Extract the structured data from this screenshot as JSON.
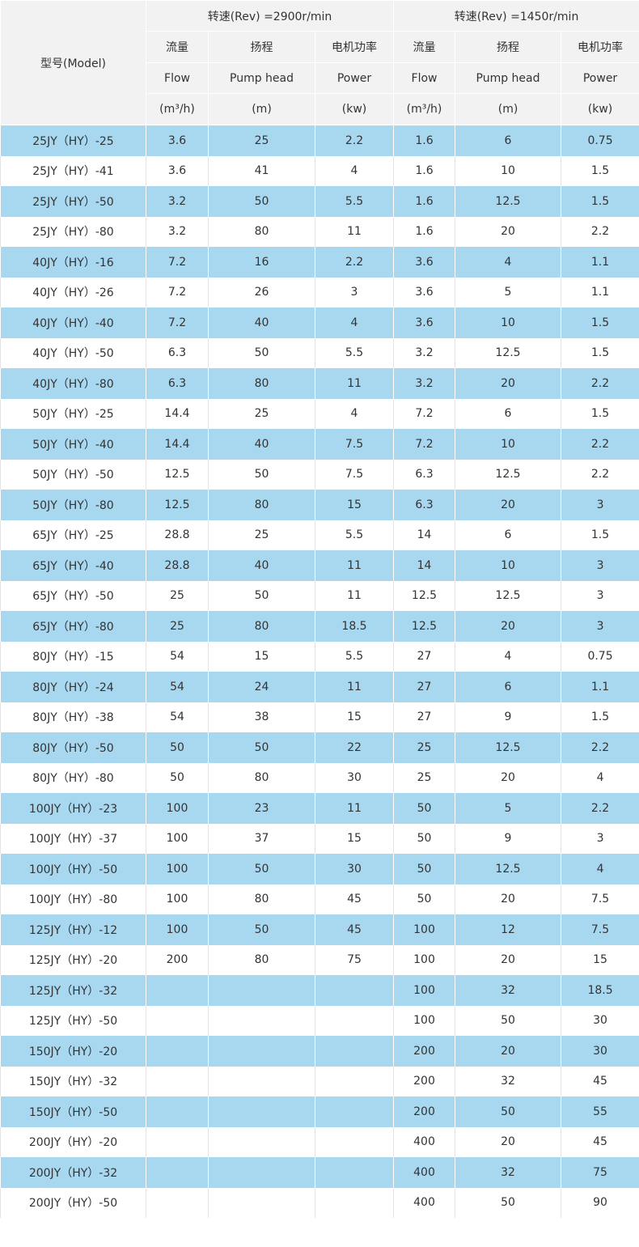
{
  "header": {
    "model": "型号(Model)",
    "groups": [
      {
        "title": "转速(Rev) =2900r/min",
        "columns": [
          {
            "cn": "流量",
            "en": "Flow",
            "unit": "(m³/h)"
          },
          {
            "cn": "扬程",
            "en": "Pump head",
            "unit": "(m)"
          },
          {
            "cn": "电机功率",
            "en": "Power",
            "unit": "(kw)"
          }
        ]
      },
      {
        "title": "转速(Rev) =1450r/min",
        "columns": [
          {
            "cn": "流量",
            "en": "Flow",
            "unit": "(m³/h)"
          },
          {
            "cn": "扬程",
            "en": "Pump head",
            "unit": "(m)"
          },
          {
            "cn": "电机功率",
            "en": "Power",
            "unit": "(kw)"
          }
        ]
      }
    ]
  },
  "table": {
    "rows": [
      [
        "25JY（HY）-25",
        3.6,
        25,
        2.2,
        1.6,
        6,
        0.75
      ],
      [
        "25JY（HY）-41",
        3.6,
        41,
        4,
        1.6,
        10,
        1.5
      ],
      [
        "25JY（HY）-50",
        3.2,
        50,
        5.5,
        1.6,
        12.5,
        1.5
      ],
      [
        "25JY（HY）-80",
        3.2,
        80,
        11,
        1.6,
        20,
        2.2
      ],
      [
        "40JY（HY）-16",
        7.2,
        16,
        2.2,
        3.6,
        4,
        1.1
      ],
      [
        "40JY（HY）-26",
        7.2,
        26,
        3,
        3.6,
        5,
        1.1
      ],
      [
        "40JY（HY）-40",
        7.2,
        40,
        4,
        3.6,
        10,
        1.5
      ],
      [
        "40JY（HY）-50",
        6.3,
        50,
        5.5,
        3.2,
        12.5,
        1.5
      ],
      [
        "40JY（HY）-80",
        6.3,
        80,
        11,
        3.2,
        20,
        2.2
      ],
      [
        "50JY（HY）-25",
        14.4,
        25,
        4,
        7.2,
        6,
        1.5
      ],
      [
        "50JY（HY）-40",
        14.4,
        40,
        7.5,
        7.2,
        10,
        2.2
      ],
      [
        "50JY（HY）-50",
        12.5,
        50,
        7.5,
        6.3,
        12.5,
        2.2
      ],
      [
        "50JY（HY）-80",
        12.5,
        80,
        15,
        6.3,
        20,
        3
      ],
      [
        "65JY（HY）-25",
        28.8,
        25,
        5.5,
        14,
        6,
        1.5
      ],
      [
        "65JY（HY）-40",
        28.8,
        40,
        11,
        14,
        10,
        3
      ],
      [
        "65JY（HY）-50",
        25,
        50,
        11,
        12.5,
        12.5,
        3
      ],
      [
        "65JY（HY）-80",
        25,
        80,
        18.5,
        12.5,
        20,
        3
      ],
      [
        "80JY（HY）-15",
        54,
        15,
        5.5,
        27,
        4,
        0.75
      ],
      [
        "80JY（HY）-24",
        54,
        24,
        11,
        27,
        6,
        1.1
      ],
      [
        "80JY（HY）-38",
        54,
        38,
        15,
        27,
        9,
        1.5
      ],
      [
        "80JY（HY）-50",
        50,
        50,
        22,
        25,
        12.5,
        2.2
      ],
      [
        "80JY（HY）-80",
        50,
        80,
        30,
        25,
        20,
        4
      ],
      [
        "100JY（HY）-23",
        100,
        23,
        11,
        50,
        5,
        2.2
      ],
      [
        "100JY（HY）-37",
        100,
        37,
        15,
        50,
        9,
        3
      ],
      [
        "100JY（HY）-50",
        100,
        50,
        30,
        50,
        12.5,
        4
      ],
      [
        "100JY（HY）-80",
        100,
        80,
        45,
        50,
        20,
        7.5
      ],
      [
        "125JY（HY）-12",
        100,
        50,
        45,
        100,
        12,
        7.5
      ],
      [
        "125JY（HY）-20",
        200,
        80,
        75,
        100,
        20,
        15
      ],
      [
        "125JY（HY）-32",
        null,
        null,
        null,
        100,
        32,
        18.5
      ],
      [
        "125JY（HY）-50",
        null,
        null,
        null,
        100,
        50,
        30
      ],
      [
        "150JY（HY）-20",
        null,
        null,
        null,
        200,
        20,
        30
      ],
      [
        "150JY（HY）-32",
        null,
        null,
        null,
        200,
        32,
        45
      ],
      [
        "150JY（HY）-50",
        null,
        null,
        null,
        200,
        50,
        55
      ],
      [
        "200JY（HY）-20",
        null,
        null,
        null,
        400,
        20,
        45
      ],
      [
        "200JY（HY）-32",
        null,
        null,
        null,
        400,
        32,
        75
      ],
      [
        "200JY（HY）-50",
        null,
        null,
        null,
        400,
        50,
        90
      ]
    ]
  }
}
